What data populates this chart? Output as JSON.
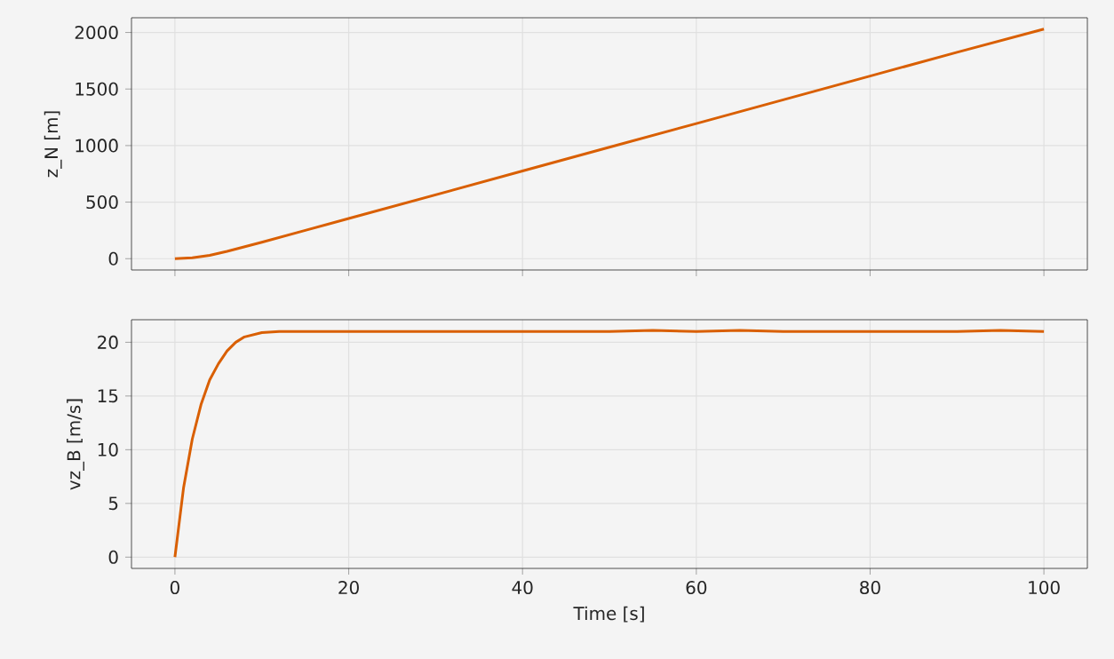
{
  "chart_data": [
    {
      "type": "line",
      "ylabel": "z_N [m]",
      "x": [
        0,
        2,
        4,
        6,
        8,
        10,
        15,
        20,
        30,
        40,
        50,
        60,
        70,
        80,
        90,
        100
      ],
      "values": [
        0,
        8,
        30,
        65,
        105,
        145,
        250,
        355,
        565,
        775,
        985,
        1195,
        1405,
        1615,
        1825,
        2030
      ],
      "color": "#d95f02",
      "xlim": [
        -5,
        105
      ],
      "ylim": [
        -100,
        2130
      ],
      "xticks": [
        0,
        20,
        40,
        60,
        80,
        100
      ],
      "yticks": [
        0,
        500,
        1000,
        1500,
        2000
      ],
      "grid": true,
      "tick_labels": "y"
    },
    {
      "type": "line",
      "xlabel": "Time [s]",
      "ylabel": "vz_B [m/s]",
      "x": [
        0,
        1,
        2,
        3,
        4,
        5,
        6,
        7,
        8,
        10,
        12,
        15,
        20,
        30,
        40,
        50,
        55,
        60,
        65,
        70,
        80,
        90,
        95,
        100
      ],
      "values": [
        0,
        6.5,
        11,
        14.2,
        16.5,
        18,
        19.2,
        20,
        20.5,
        20.9,
        21,
        21,
        21,
        21,
        21,
        21,
        21.1,
        21,
        21.1,
        21,
        21,
        21,
        21.1,
        21
      ],
      "color": "#d95f02",
      "xlim": [
        -5,
        105
      ],
      "ylim": [
        -1.05,
        22.1
      ],
      "xticks": [
        0,
        20,
        40,
        60,
        80,
        100
      ],
      "yticks": [
        0,
        5,
        10,
        15,
        20
      ],
      "grid": true
    }
  ]
}
